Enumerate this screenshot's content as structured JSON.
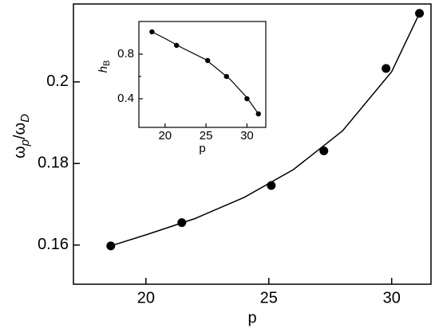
{
  "chart_data": [
    {
      "type": "scatter",
      "xlabel": "p",
      "ylabel_parts": [
        {
          "text": "ω"
        },
        {
          "text": "p",
          "sub": true
        },
        {
          "text": "/ω"
        },
        {
          "text": "D",
          "sub": true
        }
      ],
      "x": [
        18.57,
        21.46,
        25.1,
        27.24,
        29.77,
        31.13
      ],
      "values": [
        0.1598,
        0.1655,
        0.1746,
        0.1831,
        0.2033,
        0.2168
      ],
      "fit_x": [
        18.57,
        20,
        22,
        24,
        26,
        28,
        30,
        31.13
      ],
      "fit_values": [
        0.1598,
        0.1625,
        0.1665,
        0.1717,
        0.1785,
        0.188,
        0.2025,
        0.2168
      ],
      "color": "#000000",
      "xlim": [
        17.05,
        31.6
      ],
      "ylim": [
        0.1504,
        0.2191
      ],
      "xticks": [
        20,
        25,
        30
      ],
      "yticks": [
        0.16,
        0.18,
        0.2
      ]
    },
    {
      "type": "scatter",
      "xlabel": "p",
      "ylabel_parts": [
        {
          "text": "h",
          "italic": true
        },
        {
          "text": "B",
          "sub": true
        }
      ],
      "x": [
        18.4,
        21.4,
        25.2,
        27.5,
        30.0,
        31.4
      ],
      "values": [
        1.0,
        0.879,
        0.743,
        0.6,
        0.4,
        0.264
      ],
      "fit_x": [
        18.4,
        20,
        22,
        25,
        28,
        30,
        31.4
      ],
      "fit_values": [
        1.0,
        0.94,
        0.86,
        0.75,
        0.57,
        0.41,
        0.264
      ],
      "color": "#000000",
      "xlim": [
        16.8,
        32.3
      ],
      "ylim": [
        0.143,
        1.093
      ],
      "xticks": [
        20,
        25,
        30
      ],
      "yticks": [
        0.4,
        0.8
      ],
      "yminorticks": [
        0.6
      ]
    }
  ]
}
